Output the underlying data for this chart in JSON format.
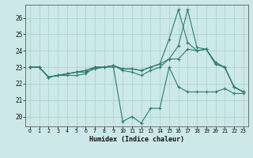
{
  "title": "",
  "xlabel": "Humidex (Indice chaleur)",
  "ylabel": "",
  "bg_color": "#cce8e8",
  "grid_color": "#aacfcf",
  "line_color": "#2d7d6e",
  "xlim": [
    -0.5,
    23.5
  ],
  "ylim": [
    19.4,
    26.8
  ],
  "yticks": [
    20,
    21,
    22,
    23,
    24,
    25,
    26
  ],
  "xticks": [
    0,
    1,
    2,
    3,
    4,
    5,
    6,
    7,
    8,
    9,
    10,
    11,
    12,
    13,
    14,
    15,
    16,
    17,
    18,
    19,
    20,
    21,
    22,
    23
  ],
  "series": [
    [
      23.0,
      23.0,
      22.4,
      22.5,
      22.5,
      22.5,
      22.6,
      23.0,
      23.0,
      23.0,
      19.7,
      20.0,
      19.6,
      20.5,
      20.5,
      23.0,
      21.8,
      21.5,
      21.5,
      21.5,
      21.5,
      21.7,
      21.4,
      21.4
    ],
    [
      23.0,
      23.0,
      22.4,
      22.5,
      22.6,
      22.7,
      22.7,
      22.9,
      23.0,
      23.1,
      22.8,
      22.7,
      22.5,
      22.8,
      23.0,
      23.5,
      24.3,
      26.5,
      24.2,
      24.1,
      23.3,
      23.0,
      21.8,
      21.5
    ],
    [
      23.0,
      23.0,
      22.4,
      22.5,
      22.6,
      22.7,
      22.8,
      23.0,
      23.0,
      23.1,
      22.9,
      22.9,
      22.8,
      23.0,
      23.2,
      24.7,
      26.5,
      24.5,
      24.0,
      24.1,
      23.2,
      23.0,
      21.8,
      21.5
    ],
    [
      23.0,
      23.0,
      22.4,
      22.5,
      22.6,
      22.7,
      22.8,
      23.0,
      23.0,
      23.1,
      22.9,
      22.9,
      22.8,
      23.0,
      23.2,
      23.5,
      23.5,
      24.1,
      24.0,
      24.1,
      23.2,
      23.0,
      21.8,
      21.5
    ]
  ]
}
